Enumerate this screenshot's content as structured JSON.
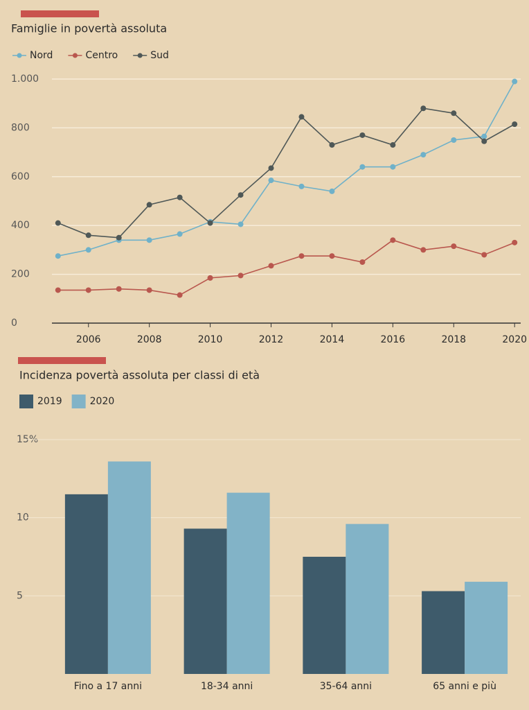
{
  "chart_data": [
    {
      "type": "line",
      "title": "Famiglie in povertà assoluta",
      "x": [
        2005,
        2006,
        2007,
        2008,
        2009,
        2010,
        2011,
        2012,
        2013,
        2014,
        2015,
        2016,
        2017,
        2018,
        2019,
        2020
      ],
      "series": [
        {
          "name": "Nord",
          "color": "#6fb1c9",
          "values": [
            275,
            300,
            340,
            340,
            365,
            415,
            405,
            585,
            560,
            540,
            640,
            640,
            690,
            750,
            765,
            990
          ]
        },
        {
          "name": "Centro",
          "color": "#b9574e",
          "values": [
            135,
            135,
            140,
            135,
            115,
            185,
            195,
            235,
            275,
            275,
            250,
            340,
            300,
            315,
            280,
            330
          ]
        },
        {
          "name": "Sud",
          "color": "#4f5857",
          "values": [
            410,
            360,
            350,
            485,
            515,
            410,
            525,
            635,
            845,
            730,
            770,
            730,
            880,
            860,
            745,
            815
          ]
        }
      ],
      "xlim": [
        2004.8,
        2020.2
      ],
      "xticks": [
        2006,
        2008,
        2010,
        2012,
        2014,
        2016,
        2018,
        2020
      ],
      "ylim": [
        0,
        1000
      ],
      "yticks": [
        0,
        200,
        400,
        600,
        800,
        {
          "value": 1000,
          "label": "1.000"
        }
      ],
      "grid": true
    },
    {
      "type": "bar",
      "title": "Incidenza povertà assoluta per classi di età",
      "categories": [
        "Fino a 17 anni",
        "18-34 anni",
        "35-64 anni",
        "65 anni e più"
      ],
      "series": [
        {
          "name": "2019",
          "color": "#3e5b6b",
          "values": [
            11.5,
            9.3,
            7.5,
            5.3
          ]
        },
        {
          "name": "2020",
          "color": "#82b3c7",
          "values": [
            13.6,
            11.6,
            9.6,
            5.9
          ]
        }
      ],
      "ylim": [
        0,
        15
      ],
      "yticks": [
        5,
        10,
        {
          "value": 15,
          "label": "15%"
        }
      ],
      "grid": true
    }
  ]
}
